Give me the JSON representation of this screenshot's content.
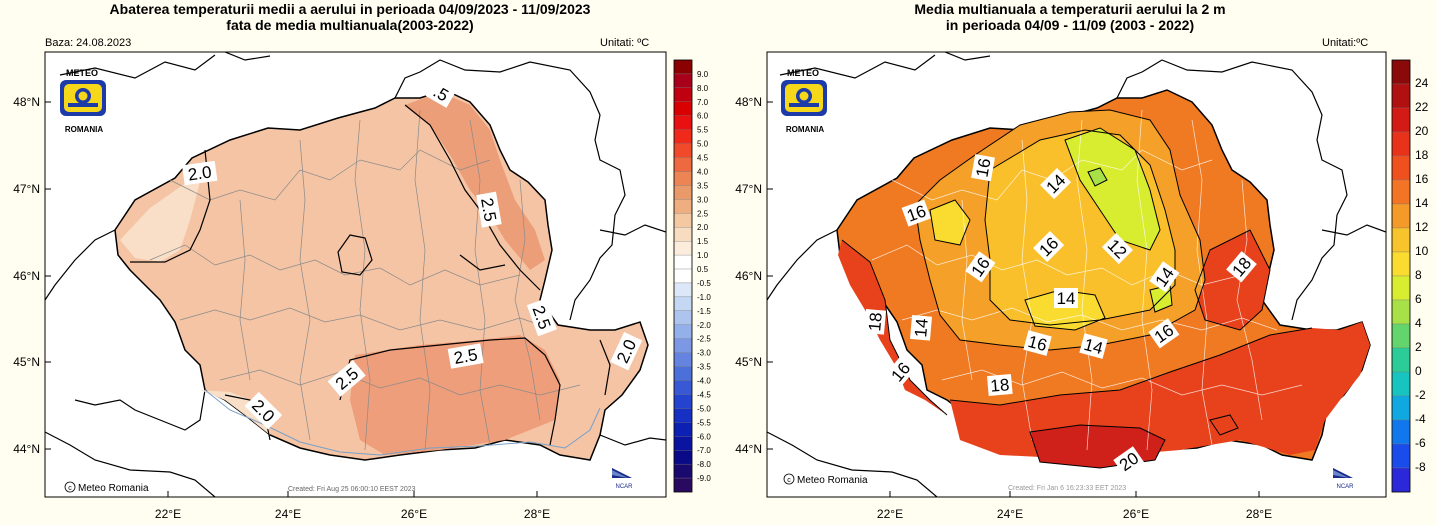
{
  "left": {
    "title1": "Abaterea temperaturii medii a aerului in perioada 04/09/2023 - 11/09/2023",
    "title2": "fata de media multianuala(2003-2022)",
    "baza": "Baza: 24.08.2023",
    "unitati": "Unitati: ºC",
    "created": "Created: Fri Aug 25 06:00:10 EEST 2023",
    "credit": "Meteo Romania",
    "contour_labels": [
      "2.0",
      "2.5",
      "2.5",
      "2.5",
      "2.5",
      "2.0",
      "2.0",
      ".5",
      "2.5"
    ],
    "legend_labels": [
      "9.0",
      "8.0",
      "7.0",
      "6.0",
      "5.5",
      "5.0",
      "4.5",
      "4.0",
      "3.5",
      "3.0",
      "2.5",
      "2.0",
      "1.5",
      "1.0",
      "0.5",
      "-0.5",
      "-1.0",
      "-1.5",
      "-2.0",
      "-2.5",
      "-3.0",
      "-3.5",
      "-4.0",
      "-4.5",
      "-5.0",
      "-5.5",
      "-6.0",
      "-7.0",
      "-8.0",
      "-9.0"
    ],
    "legend_colors": [
      "#8b0000",
      "#a8001a",
      "#c00010",
      "#d80000",
      "#e81010",
      "#f02a1a",
      "#f04a2a",
      "#ee6840",
      "#ec8454",
      "#e99a68",
      "#eeae80",
      "#f4c8a0",
      "#f8dcc0",
      "#fcecdc",
      "#ffffff",
      "#ffffff",
      "#dce8f8",
      "#c4d8f4",
      "#acc4ee",
      "#94b0ea",
      "#7c98e4",
      "#6484e0",
      "#4c70da",
      "#3858d6",
      "#2444d0",
      "#1630c4",
      "#0c20b4",
      "#0a14a0",
      "#0a0a88",
      "#1a0a70",
      "#2a0a60"
    ]
  },
  "right": {
    "title1": "Media multianuala a temperaturii aerului la 2 m",
    "title2": "in perioada 04/09 - 11/09 (2003 - 2022)",
    "unitati": "Unitati:ºC",
    "created": "Created: Fri Jan  6 16:23:33 EET 2023",
    "credit": "Meteo Romania",
    "contour_labels": [
      "16",
      "16",
      "14",
      "16",
      "16",
      "12",
      "18",
      "18",
      "14",
      "14",
      "14",
      "16",
      "14",
      "16",
      "16",
      "18",
      "20"
    ],
    "legend_labels": [
      "24",
      "22",
      "20",
      "18",
      "16",
      "14",
      "12",
      "10",
      "8",
      "6",
      "4",
      "2",
      "0",
      "-2",
      "-4",
      "-6",
      "-8"
    ],
    "legend_colors": [
      "#8a0a0a",
      "#b01010",
      "#d41a14",
      "#e8321a",
      "#f0501e",
      "#f27424",
      "#f49a28",
      "#f8c42c",
      "#fadc30",
      "#d8ec30",
      "#a8e048",
      "#64d46c",
      "#2ccc98",
      "#18c4c0",
      "#10a8e0",
      "#1078ec",
      "#1a4cec",
      "#2a28d8"
    ]
  },
  "x_ticks": [
    "22°E",
    "24°E",
    "26°E",
    "28°E"
  ],
  "y_ticks": [
    "48°N",
    "47°N",
    "46°N",
    "45°N",
    "44°N"
  ],
  "logo": {
    "top": "METEO",
    "bottom": "ROMANIA"
  },
  "ncar": "NCAR"
}
